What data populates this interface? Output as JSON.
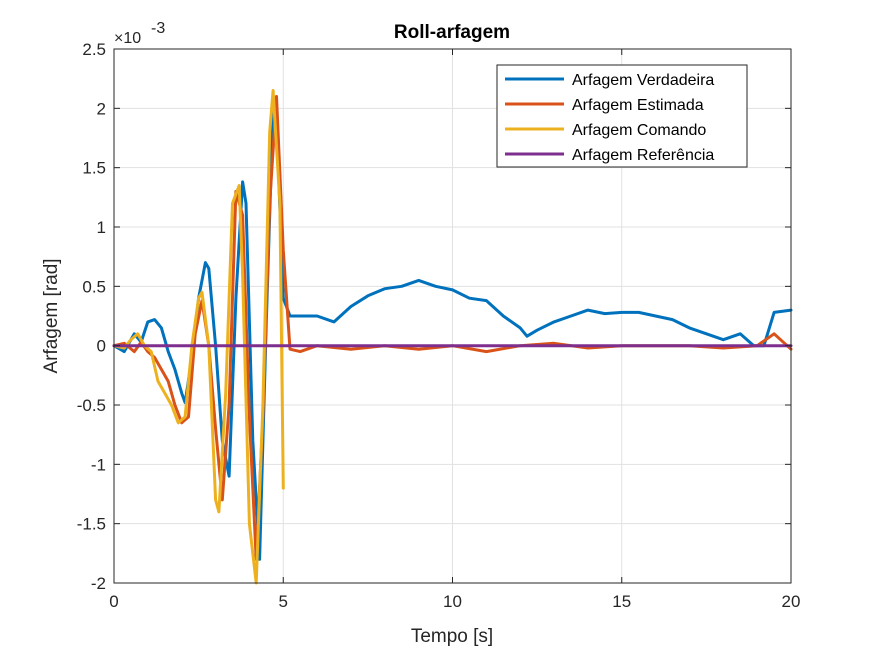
{
  "chart_data": {
    "type": "line",
    "title": "Roll-arfagem",
    "xlabel": "Tempo [s]",
    "ylabel": "Arfagem [rad]",
    "y_exponent_label": "×10",
    "y_exponent_power": "-3",
    "xlim": [
      0,
      20
    ],
    "ylim": [
      -0.002,
      0.0025
    ],
    "x_ticks": [
      0,
      5,
      10,
      15,
      20
    ],
    "x_tick_labels": [
      "0",
      "5",
      "10",
      "15",
      "20"
    ],
    "y_ticks": [
      -0.002,
      -0.0015,
      -0.001,
      -0.0005,
      0,
      0.0005,
      0.001,
      0.0015,
      0.002,
      0.0025
    ],
    "y_tick_labels": [
      "-2",
      "-1.5",
      "-1",
      "-0.5",
      "0",
      "0.5",
      "1",
      "1.5",
      "2",
      "2.5"
    ],
    "grid": true,
    "legend_position": "top-right",
    "series": [
      {
        "name": "Arfagem Verdadeira",
        "color": "#0072BD",
        "x": [
          0,
          0.3,
          0.6,
          0.8,
          1.0,
          1.2,
          1.4,
          1.6,
          1.8,
          2.0,
          2.1,
          2.3,
          2.5,
          2.7,
          2.8,
          3.0,
          3.2,
          3.4,
          3.6,
          3.8,
          3.9,
          4.1,
          4.3,
          4.5,
          4.7,
          4.8,
          5.0,
          5.2,
          5.5,
          6.0,
          6.5,
          7.0,
          7.5,
          8.0,
          8.5,
          9.0,
          9.5,
          10.0,
          10.5,
          11.0,
          11.5,
          12.0,
          12.2,
          12.5,
          13.0,
          13.5,
          14.0,
          14.5,
          15.0,
          15.5,
          16.0,
          16.5,
          17.0,
          17.5,
          18.0,
          18.5,
          18.9,
          19.2,
          19.5,
          20.0
        ],
        "y": [
          0.0,
          -5e-05,
          0.0001,
          3e-05,
          0.0002,
          0.00022,
          0.00015,
          -5e-05,
          -0.0002,
          -0.0004,
          -0.00048,
          -0.0001,
          0.0004,
          0.0007,
          0.00065,
          0.0,
          -0.0008,
          -0.0011,
          0.0004,
          0.00138,
          0.0012,
          -0.0008,
          -0.0018,
          0.0002,
          0.002,
          0.0019,
          0.0004,
          0.00025,
          0.00025,
          0.00025,
          0.0002,
          0.00033,
          0.00042,
          0.00048,
          0.0005,
          0.00055,
          0.0005,
          0.00047,
          0.0004,
          0.00038,
          0.00025,
          0.00015,
          8e-05,
          0.00013,
          0.0002,
          0.00025,
          0.0003,
          0.00027,
          0.00028,
          0.00028,
          0.00025,
          0.00022,
          0.00015,
          0.0001,
          5e-05,
          0.0001,
          0.0,
          0.0,
          0.00028,
          0.0003
        ]
      },
      {
        "name": "Arfagem Estimada",
        "color": "#D95319",
        "x": [
          0,
          0.3,
          0.6,
          0.8,
          1.0,
          1.2,
          1.4,
          1.6,
          1.8,
          2.0,
          2.2,
          2.4,
          2.6,
          2.8,
          3.0,
          3.2,
          3.4,
          3.6,
          3.8,
          4.0,
          4.2,
          4.4,
          4.6,
          4.8,
          5.0,
          5.2,
          5.5,
          6.0,
          7.0,
          8.0,
          9.0,
          10.0,
          11.0,
          12.0,
          13.0,
          14.0,
          15.0,
          16.0,
          17.0,
          18.0,
          19.0,
          19.5,
          20.0
        ],
        "y": [
          0.0,
          2e-05,
          -5e-05,
          3e-05,
          -5e-05,
          -0.0001,
          -0.0002,
          -0.0003,
          -0.0005,
          -0.00065,
          -0.0006,
          0.0001,
          0.00038,
          0.0,
          -0.0007,
          -0.0013,
          -0.0005,
          0.0013,
          0.0011,
          -0.0006,
          -0.0018,
          -0.0006,
          0.0012,
          0.0021,
          0.0008,
          -3e-05,
          -5e-05,
          0.0,
          -3e-05,
          0.0,
          -3e-05,
          0.0,
          -5e-05,
          0.0,
          2e-05,
          -2e-05,
          0.0,
          0.0,
          0.0,
          -2e-05,
          0.0,
          0.0001,
          -3e-05
        ]
      },
      {
        "name": "Arfagem Comando",
        "color": "#EDB120",
        "x": [
          0,
          0.3,
          0.5,
          0.7,
          0.9,
          1.1,
          1.3,
          1.5,
          1.7,
          1.9,
          2.1,
          2.3,
          2.5,
          2.6,
          2.8,
          3.0,
          3.1,
          3.3,
          3.5,
          3.7,
          3.8,
          4.0,
          4.2,
          4.4,
          4.6,
          4.7,
          4.9,
          5.0
        ],
        "y": [
          0.0,
          -2e-05,
          5e-05,
          0.0001,
          0.0,
          -5e-05,
          -0.0003,
          -0.0004,
          -0.0005,
          -0.00065,
          -0.0006,
          0.0,
          0.0004,
          0.00045,
          0.0,
          -0.0013,
          -0.0014,
          -0.0004,
          0.0012,
          0.00135,
          0.0006,
          -0.0015,
          -0.002,
          -0.0005,
          0.0018,
          0.00215,
          0.0012,
          -0.0012
        ]
      },
      {
        "name": "Arfagem Referência",
        "color": "#7E2F8E",
        "x": [
          0,
          20
        ],
        "y": [
          0,
          0
        ]
      }
    ]
  }
}
